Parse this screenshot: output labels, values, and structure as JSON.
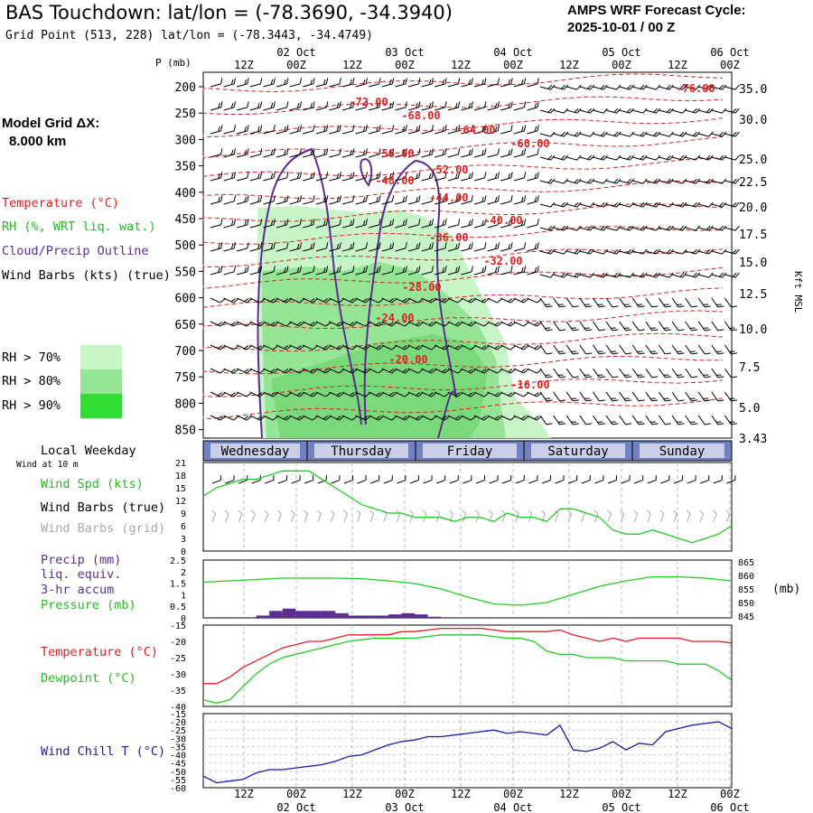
{
  "header": {
    "title": "BAS Touchdown:  lat/lon = (-78.3690, -34.3940)",
    "grid_point": "Grid Point (513, 228) lat/lon = (-78.3443, -34.4749)",
    "cycle_line1": "AMPS WRF Forecast Cycle:",
    "cycle_line2": "2025-10-01 / 00  Z"
  },
  "sidebar": {
    "model_grid_label": "Model Grid ΔX:",
    "model_grid_value": "8.000 km",
    "legend_temperature": "Temperature (°C)",
    "legend_rh": "RH (%, WRT liq. wat.)",
    "legend_cloud": "Cloud/Precip Outline",
    "legend_wind": "Wind Barbs (kts) (true)",
    "rh70": "RH > 70%",
    "rh80": "RH > 80%",
    "rh90": "RH > 90%",
    "local_weekday": "Local Weekday",
    "wind_at": "Wind at 10 m",
    "wind_spd": "Wind Spd (kts)",
    "wind_barbs_true": "Wind Barbs (true)",
    "wind_barbs_grid": "Wind Barbs (grid)",
    "precip1": "Precip (mm)",
    "precip2": "liq. equiv.",
    "precip3": "3-hr accum",
    "pressure": "Pressure (mb)",
    "temperature": "Temperature (°C)",
    "dewpoint": "Dewpoint (°C)",
    "windchill": "Wind Chill T (°C)"
  },
  "colors": {
    "temperature": "#e02020",
    "rh70": "#c8f5c8",
    "rh80": "#96e596",
    "rh90": "#33dd33",
    "cloud": "#5a2d91",
    "windspd": "#22cc22",
    "wind_grid": "#aaaaaa",
    "precip": "#5a2d91",
    "pressure": "#22cc22",
    "windchill": "#1a1aaa"
  },
  "chart_data": [
    {
      "type": "line",
      "name": "cross-section",
      "y_left_label": "P (mb)",
      "y_right_label": "Kft MSL",
      "pressure_levels": [
        200,
        250,
        300,
        350,
        400,
        450,
        500,
        550,
        600,
        650,
        700,
        750,
        800,
        850
      ],
      "pressure_labels": [
        "200",
        "250",
        "300",
        "350",
        "400",
        "450",
        "500",
        "550",
        "600",
        "650",
        "700",
        "750",
        "800",
        "850"
      ],
      "height_ticks": [
        {
          "p": 200,
          "label": "35.0"
        },
        {
          "p": 250,
          "label": "30.0"
        },
        {
          "p": 310,
          "label": "25.0"
        },
        {
          "p": 350,
          "label": "22.5"
        },
        {
          "p": 390,
          "label": "20.0"
        },
        {
          "p": 440,
          "label": "17.5"
        },
        {
          "p": 490,
          "label": "15.0"
        },
        {
          "p": 555,
          "label": "12.5"
        },
        {
          "p": 615,
          "label": "10.0"
        },
        {
          "p": 670,
          "label": "7.5"
        },
        {
          "p": 745,
          "label": "5.0"
        },
        {
          "p": 820,
          "label": "3.43"
        }
      ],
      "isotherm_labels": [
        {
          "t_hour": 12,
          "p": 200,
          "label": "-76.00",
          "pos": "right"
        },
        {
          "label": "-72.00",
          "hour": 30,
          "p": 245
        },
        {
          "label": "-68.00",
          "hour": 42,
          "p": 260
        },
        {
          "label": "-64.00",
          "hour": 57,
          "p": 285
        },
        {
          "label": "-60.00",
          "hour": 70,
          "p": 305
        },
        {
          "label": "-56.00",
          "hour": 38,
          "p": 330
        },
        {
          "label": "-52.00",
          "hour": 53,
          "p": 360
        },
        {
          "label": "-48.00",
          "hour": 40,
          "p": 375
        },
        {
          "label": "-44.00",
          "hour": 52,
          "p": 410
        },
        {
          "label": "-40.00",
          "hour": 60,
          "p": 470
        },
        {
          "label": "-36.00",
          "hour": 47,
          "p": 505
        },
        {
          "label": "-32.00",
          "hour": 63,
          "p": 560
        },
        {
          "label": "-28.00",
          "hour": 45,
          "p": 610
        },
        {
          "label": "-24.00",
          "hour": 42,
          "p": 680
        },
        {
          "label": "-20.00",
          "hour": 43,
          "p": 760
        },
        {
          "label": "-16.00",
          "hour": 71,
          "p": 800
        }
      ]
    },
    {
      "type": "line",
      "name": "wind speed",
      "y_ticks": [
        "0",
        "3",
        "6",
        "9",
        "12",
        "15",
        "18",
        "21"
      ],
      "ylim": [
        0,
        21
      ],
      "x_hours": [
        0,
        3,
        6,
        9,
        12,
        15,
        18,
        21,
        24,
        27,
        30,
        33,
        36,
        39,
        42,
        45,
        48,
        51,
        54,
        57,
        60,
        63,
        66,
        69,
        72,
        75,
        78,
        81,
        84,
        87,
        90,
        93,
        96,
        99,
        102,
        105,
        108,
        111,
        114,
        117,
        120
      ],
      "values": [
        13,
        15,
        16,
        17,
        17,
        18,
        19,
        19,
        19,
        17,
        15,
        13,
        11,
        10,
        9,
        9,
        8,
        8,
        8,
        7,
        8,
        8,
        7,
        9,
        8,
        8,
        7,
        10,
        10,
        9,
        8,
        5,
        4,
        4,
        5,
        4,
        3,
        2,
        3,
        4,
        6
      ]
    },
    {
      "type": "bar",
      "name": "precip & pressure",
      "y_left_ticks": [
        "0",
        "0.5",
        "1",
        "1.5",
        "2",
        "2.5"
      ],
      "y_right_ticks": [
        "845",
        "850",
        "855",
        "860",
        "865"
      ],
      "precip_hours": [
        12,
        15,
        18,
        21,
        24,
        27,
        30,
        33,
        36,
        39,
        42,
        45,
        48,
        51
      ],
      "precip_values": [
        0.1,
        0.3,
        0.4,
        0.3,
        0.3,
        0.3,
        0.2,
        0.1,
        0.1,
        0.1,
        0.15,
        0.2,
        0.15,
        0.05
      ],
      "pressure_hours": [
        0,
        6,
        12,
        18,
        24,
        30,
        36,
        42,
        48,
        54,
        60,
        66,
        72,
        78,
        84,
        90,
        96,
        102,
        108,
        114,
        120
      ],
      "pressure_values": [
        857.5,
        858,
        858.5,
        859,
        859,
        859,
        858.8,
        858,
        857,
        855,
        852,
        849.5,
        849,
        850,
        853,
        856,
        858,
        859.5,
        859.5,
        859,
        858
      ]
    },
    {
      "type": "line",
      "name": "temperature",
      "y_ticks": [
        "-40",
        "-35",
        "-30",
        "-25",
        "-20",
        "-15"
      ],
      "ylim": [
        -40,
        -15
      ],
      "x_hours": [
        0,
        3,
        6,
        9,
        12,
        15,
        18,
        21,
        24,
        27,
        30,
        33,
        36,
        39,
        42,
        45,
        48,
        51,
        54,
        57,
        60,
        63,
        66,
        69,
        72,
        75,
        78,
        81,
        84,
        87,
        90,
        93,
        96,
        99,
        102,
        105,
        108,
        111,
        114,
        117,
        120
      ],
      "temperature": [
        -33,
        -33,
        -31,
        -28,
        -26,
        -24,
        -22,
        -21,
        -20,
        -20,
        -19,
        -18,
        -18,
        -18,
        -18,
        -17,
        -17,
        -16.5,
        -16,
        -16,
        -16,
        -16,
        -16.5,
        -17,
        -17,
        -17,
        -17,
        -16.5,
        -18,
        -19,
        -20,
        -19,
        -20,
        -19,
        -19,
        -19,
        -19,
        -20,
        -20,
        -20,
        -20.5
      ],
      "dewpoint": [
        -38,
        -39,
        -38,
        -34,
        -30,
        -27,
        -25,
        -24,
        -23,
        -22,
        -21,
        -20,
        -19.5,
        -19,
        -19,
        -19,
        -19,
        -18.5,
        -18,
        -18,
        -18,
        -18,
        -18.5,
        -19,
        -19,
        -20,
        -23,
        -24,
        -24,
        -25,
        -25,
        -25,
        -26,
        -26,
        -26,
        -26,
        -27,
        -27,
        -27,
        -29,
        -32
      ]
    },
    {
      "type": "line",
      "name": "wind chill",
      "y_ticks": [
        "-60",
        "-55",
        "-50",
        "-45",
        "-40",
        "-35",
        "-30",
        "-25",
        "-20",
        "-15"
      ],
      "ylim": [
        -60,
        -15
      ],
      "x_hours": [
        0,
        3,
        6,
        9,
        12,
        15,
        18,
        21,
        24,
        27,
        30,
        33,
        36,
        39,
        42,
        45,
        48,
        51,
        54,
        57,
        60,
        63,
        66,
        69,
        72,
        75,
        78,
        81,
        84,
        87,
        90,
        93,
        96,
        99,
        102,
        105,
        108,
        111,
        114,
        117,
        120
      ],
      "values": [
        -53,
        -57,
        -56,
        -55,
        -51,
        -49,
        -49,
        -48,
        -47,
        -46,
        -44,
        -41,
        -40,
        -37,
        -34,
        -32,
        -31,
        -29,
        -29,
        -28,
        -27,
        -26,
        -25,
        -27,
        -26,
        -27,
        -28,
        -22,
        -37,
        -38,
        -36,
        -32,
        -37,
        -33,
        -34,
        -26,
        -24,
        -22,
        -21,
        -20,
        -24
      ]
    }
  ],
  "time_axis": {
    "top_hours": [
      "12Z",
      "00Z",
      "12Z",
      "00Z",
      "12Z",
      "00Z",
      "12Z",
      "00Z",
      "12Z",
      "00Z"
    ],
    "dates": [
      "02 Oct",
      "03 Oct",
      "04 Oct",
      "05 Oct",
      "06 Oct"
    ],
    "weekdays": [
      "Wednesday",
      "Thursday",
      "Friday",
      "Saturday",
      "Sunday"
    ]
  }
}
